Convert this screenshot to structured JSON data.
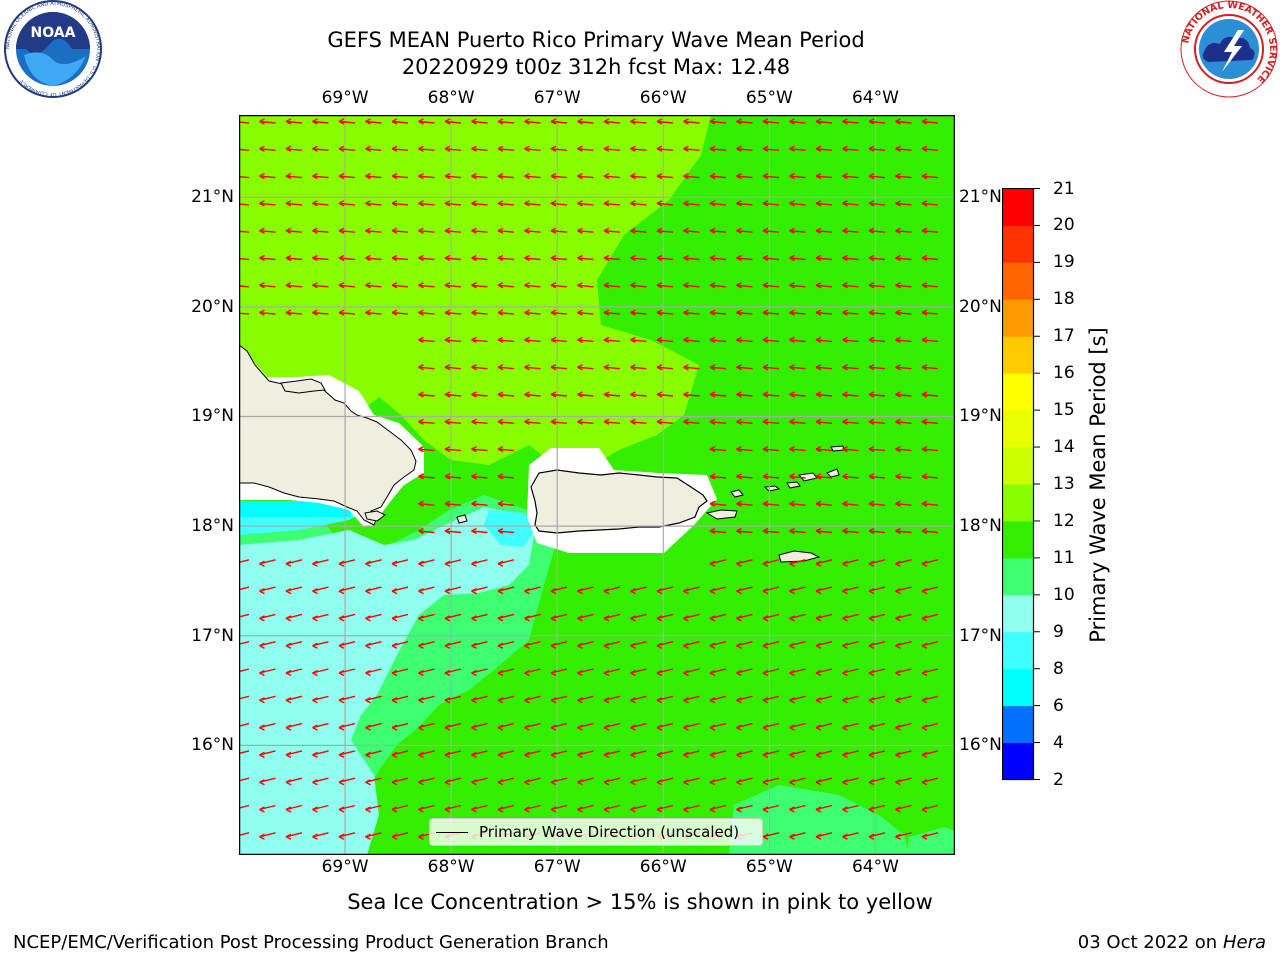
{
  "title": {
    "line1": "GEFS MEAN Puerto Rico Primary Wave Mean Period",
    "line2": "20220929 t00z 312h fcst   Max: 12.48"
  },
  "logos": {
    "left_text": "NOAA",
    "left_ring": "NATIONAL OCEANIC AND ATMOSPHERIC ADMINISTRATION · U.S. DEPARTMENT OF COMMERCE",
    "right_ring": "NATIONAL WEATHER SERVICE"
  },
  "map": {
    "lon_ticks": [
      "69°W",
      "68°W",
      "67°W",
      "66°W",
      "65°W",
      "64°W"
    ],
    "lat_ticks": [
      "21°N",
      "20°N",
      "19°N",
      "18°N",
      "17°N",
      "16°N"
    ],
    "extent": {
      "lon_min": -70.0,
      "lon_max": -63.25,
      "lat_min": 15.0,
      "lat_max": 21.75
    },
    "arrow_color": "#ff0000",
    "land_color": "#efeedf",
    "legend_label": "Primary Wave Direction (unscaled)"
  },
  "colorbar": {
    "label": "Primary Wave Mean Period [s]",
    "ticks": [
      "2",
      "4",
      "6",
      "8",
      "9",
      "10",
      "11",
      "12",
      "13",
      "14",
      "15",
      "16",
      "17",
      "18",
      "19",
      "20",
      "21"
    ],
    "colors": [
      "#0000ff",
      "#0070ff",
      "#00ffff",
      "#40ffff",
      "#90fff0",
      "#3dff70",
      "#33ee00",
      "#88ff00",
      "#ccff00",
      "#e8ff00",
      "#ffff00",
      "#ffcc00",
      "#ff9900",
      "#ff6600",
      "#ff3300",
      "#ff0000"
    ]
  },
  "note": "Sea Ice Concentration > 15% is shown in pink to yellow",
  "footer": {
    "left": "NCEP/EMC/Verification Post Processing Product Generation Branch",
    "right_prefix": "03 Oct 2022 on ",
    "right_italic": "Hera"
  }
}
